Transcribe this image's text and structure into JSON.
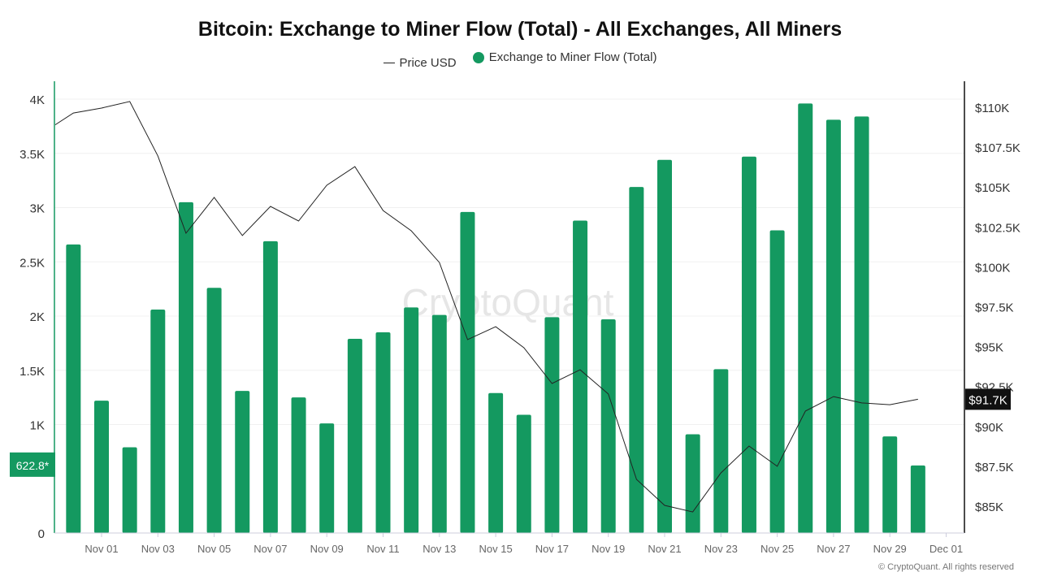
{
  "chart_data": {
    "type": "bar+line",
    "title": "Bitcoin: Exchange to Miner Flow (Total) - All Exchanges, All Miners",
    "watermark": "CryptoQuant",
    "copyright": "© CryptoQuant. All rights reserved",
    "legend_position": "top",
    "grid": true,
    "colors": {
      "bars": "#149960",
      "line": "#222222",
      "left_axis": "#149960",
      "right_axis": "#111111"
    },
    "x_ticks": [
      "Nov 01",
      "Nov 03",
      "Nov 05",
      "Nov 07",
      "Nov 09",
      "Nov 11",
      "Nov 13",
      "Nov 15",
      "Nov 17",
      "Nov 19",
      "Nov 21",
      "Nov 23",
      "Nov 25",
      "Nov 27",
      "Nov 29",
      "Dec 01"
    ],
    "left_axis": {
      "ticks": [
        "0",
        "500",
        "1K",
        "1.5K",
        "2K",
        "2.5K",
        "3K",
        "3.5K",
        "4K"
      ],
      "ylim": [
        0,
        4000
      ]
    },
    "right_axis": {
      "ticks": [
        "$85K",
        "$87.5K",
        "$90K",
        "$92.5K",
        "$95K",
        "$97.5K",
        "$100K",
        "$102.5K",
        "$105K",
        "$107.5K",
        "$110K"
      ],
      "ylim": [
        83300,
        112000
      ]
    },
    "series": [
      {
        "name": "Exchange to Miner Flow (Total)",
        "type": "bar",
        "axis": "left",
        "dates": [
          "Oct 31",
          "Nov 01",
          "Nov 02",
          "Nov 03",
          "Nov 04",
          "Nov 05",
          "Nov 06",
          "Nov 07",
          "Nov 08",
          "Nov 09",
          "Nov 10",
          "Nov 11",
          "Nov 12",
          "Nov 13",
          "Nov 14",
          "Nov 15",
          "Nov 16",
          "Nov 17",
          "Nov 18",
          "Nov 19",
          "Nov 20",
          "Nov 21",
          "Nov 22",
          "Nov 23",
          "Nov 24",
          "Nov 25",
          "Nov 26",
          "Nov 27",
          "Nov 28",
          "Nov 29",
          "Nov 30"
        ],
        "values": [
          2660,
          1220,
          790,
          2060,
          3050,
          2260,
          1310,
          2690,
          1250,
          1010,
          1790,
          1850,
          2080,
          2010,
          2960,
          1290,
          1090,
          1990,
          2880,
          1970,
          3190,
          3440,
          910,
          1510,
          3470,
          2790,
          3960,
          3810,
          3840,
          890,
          622.8
        ],
        "last_label": "622.8*"
      },
      {
        "name": "Price USD",
        "type": "line",
        "axis": "right",
        "dates": [
          "Oct 30",
          "Oct 31",
          "Nov 01",
          "Nov 02",
          "Nov 03",
          "Nov 04",
          "Nov 05",
          "Nov 06",
          "Nov 07",
          "Nov 08",
          "Nov 09",
          "Nov 10",
          "Nov 11",
          "Nov 12",
          "Nov 13",
          "Nov 14",
          "Nov 15",
          "Nov 16",
          "Nov 17",
          "Nov 18",
          "Nov 19",
          "Nov 20",
          "Nov 21",
          "Nov 22",
          "Nov 23",
          "Nov 24",
          "Nov 25",
          "Nov 26",
          "Nov 27",
          "Nov 28",
          "Nov 29",
          "Nov 30"
        ],
        "values": [
          108500,
          109640,
          109950,
          110360,
          106950,
          102110,
          104350,
          101960,
          103790,
          102870,
          105110,
          106280,
          103530,
          102260,
          100270,
          95440,
          96250,
          94930,
          92690,
          93550,
          92030,
          86680,
          85050,
          84640,
          87090,
          88770,
          87500,
          90960,
          91870,
          91470,
          91360,
          91700
        ],
        "last_label": "$91.7K"
      }
    ]
  }
}
